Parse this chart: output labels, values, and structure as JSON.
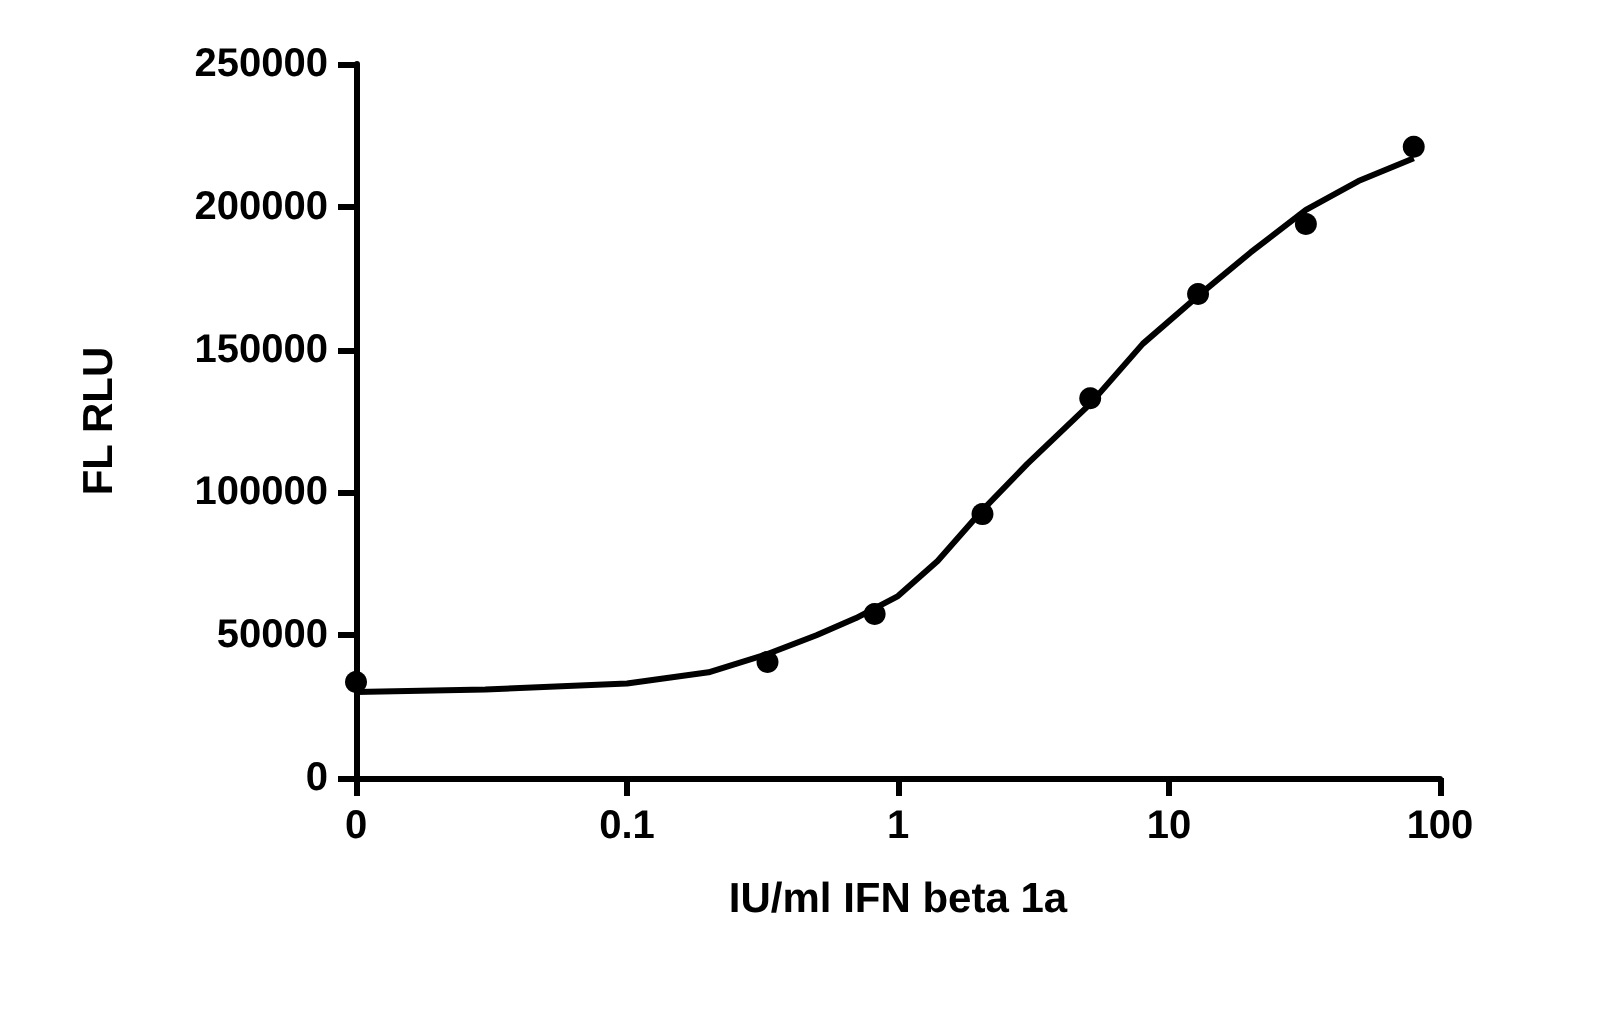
{
  "chart_data": {
    "type": "scatter",
    "xlabel": "IU/ml IFN beta 1a",
    "ylabel": "FL RLU",
    "log": "x",
    "grid": false,
    "xlim": [
      0.01,
      100
    ],
    "xticks": [
      {
        "value": 0.01,
        "label": "0"
      },
      0.1,
      1,
      10,
      100
    ],
    "ylim": [
      0,
      250000
    ],
    "yticks": [
      0,
      50000,
      100000,
      150000,
      200000,
      250000
    ],
    "series": [
      {
        "marker": "circle",
        "color": "#000000",
        "x": [
          0.01,
          0.33,
          0.82,
          2.05,
          5.12,
          12.8,
          32,
          80
        ],
        "values": [
          33600,
          40600,
          57400,
          92400,
          133000,
          169500,
          194000,
          221000
        ]
      },
      {
        "type": "line",
        "marker": "none",
        "line_style": "solid",
        "color": "#000000",
        "x": [
          0.01,
          0.03,
          0.1,
          0.2,
          0.33,
          0.5,
          0.7,
          1,
          1.4,
          2.05,
          3,
          5.12,
          8,
          12.8,
          20,
          32,
          50,
          80
        ],
        "values": [
          30100,
          31000,
          33100,
          37000,
          43400,
          50000,
          56000,
          63700,
          76000,
          93800,
          110000,
          131000,
          152000,
          168800,
          184000,
          198900,
          209000,
          217000
        ]
      }
    ]
  }
}
